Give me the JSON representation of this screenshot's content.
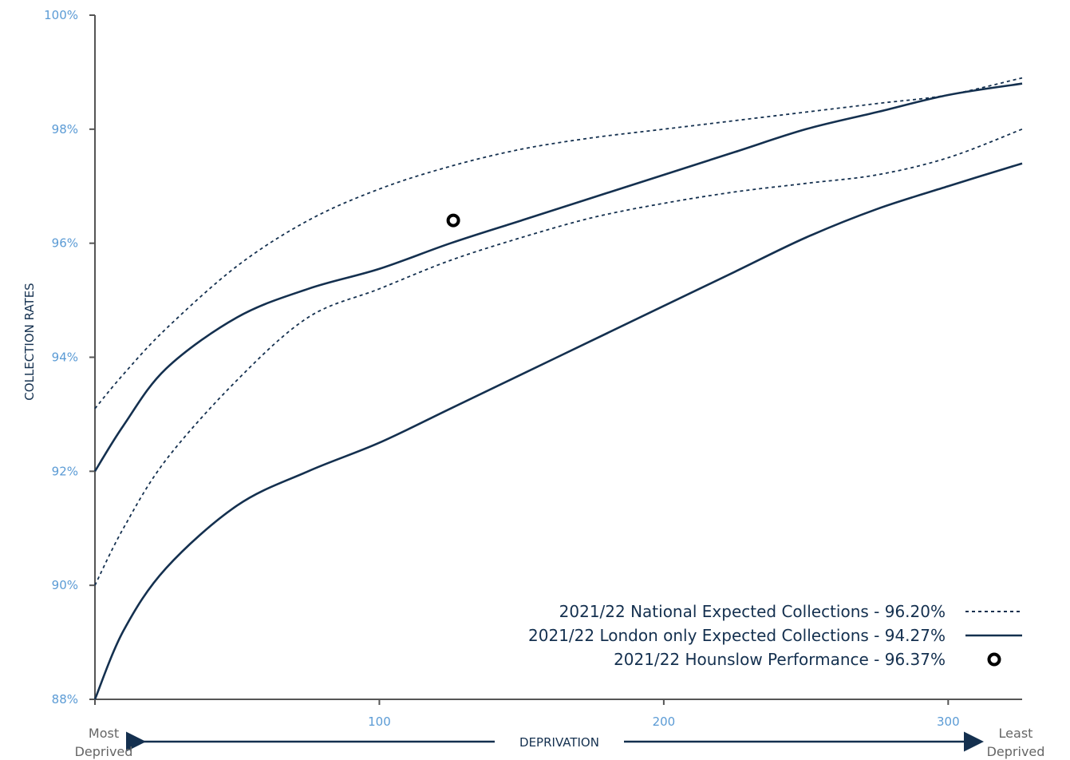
{
  "colors": {
    "navy": "#14304f",
    "tick_blue": "#5b9bd5",
    "axis": "#555555"
  },
  "chart_data": {
    "type": "line",
    "xlabel": "DEPRIVATION",
    "ylabel": "COLLECTION RATES",
    "xlim": [
      0,
      326
    ],
    "ylim": [
      88,
      100
    ],
    "x_ticks": [
      "100",
      "200",
      "300"
    ],
    "y_ticks": [
      "88%",
      "90%",
      "92%",
      "94%",
      "96%",
      "98%",
      "100%"
    ],
    "x_end_labels": {
      "left": [
        "Most",
        "Deprived"
      ],
      "right": [
        "Least",
        "Deprived"
      ]
    },
    "grid": false,
    "legend_position": "bottom-right",
    "series": [
      {
        "name": "2021/22 National Expected Collections - 96.20%",
        "style": "dotted",
        "band": "upper",
        "x": [
          0,
          10,
          25,
          50,
          75,
          100,
          125,
          150,
          175,
          200,
          225,
          250,
          275,
          300,
          326
        ],
        "y": [
          93.1,
          93.7,
          94.5,
          95.6,
          96.4,
          96.95,
          97.35,
          97.65,
          97.85,
          98.0,
          98.15,
          98.3,
          98.45,
          98.6,
          98.9
        ]
      },
      {
        "name": "2021/22 National Expected Collections - 96.20%",
        "style": "dotted",
        "band": "lower",
        "x": [
          0,
          10,
          25,
          50,
          75,
          100,
          125,
          150,
          175,
          200,
          225,
          250,
          275,
          300,
          326
        ],
        "y": [
          90.0,
          91.0,
          92.2,
          93.6,
          94.7,
          95.2,
          95.7,
          96.1,
          96.45,
          96.7,
          96.9,
          97.05,
          97.2,
          97.5,
          98.0
        ]
      },
      {
        "name": "2021/22 London only Expected Collections - 94.27%",
        "style": "solid",
        "band": "upper",
        "x": [
          0,
          10,
          25,
          50,
          75,
          100,
          125,
          150,
          175,
          200,
          225,
          250,
          275,
          300,
          326
        ],
        "y": [
          92.0,
          92.8,
          93.8,
          94.7,
          95.2,
          95.55,
          96.0,
          96.4,
          96.8,
          97.2,
          97.6,
          98.0,
          98.3,
          98.6,
          98.8
        ]
      },
      {
        "name": "2021/22 London only Expected Collections - 94.27%",
        "style": "solid",
        "band": "lower",
        "x": [
          0,
          10,
          25,
          50,
          75,
          100,
          125,
          150,
          175,
          200,
          225,
          250,
          275,
          300,
          326
        ],
        "y": [
          88.0,
          89.2,
          90.3,
          91.4,
          92.0,
          92.5,
          93.1,
          93.7,
          94.3,
          94.9,
          95.5,
          96.1,
          96.6,
          97.0,
          97.4
        ]
      },
      {
        "name": "2021/22 Hounslow Performance - 96.37%",
        "style": "marker",
        "x": [
          126
        ],
        "y": [
          96.4
        ]
      }
    ],
    "legend": [
      {
        "label": "2021/22 National Expected Collections - 96.20%",
        "symbol": "dotted-line"
      },
      {
        "label": "2021/22 London only Expected Collections - 94.27%",
        "symbol": "solid-line"
      },
      {
        "label": "2021/22 Hounslow Performance - 96.37%",
        "symbol": "ring-marker"
      }
    ]
  }
}
